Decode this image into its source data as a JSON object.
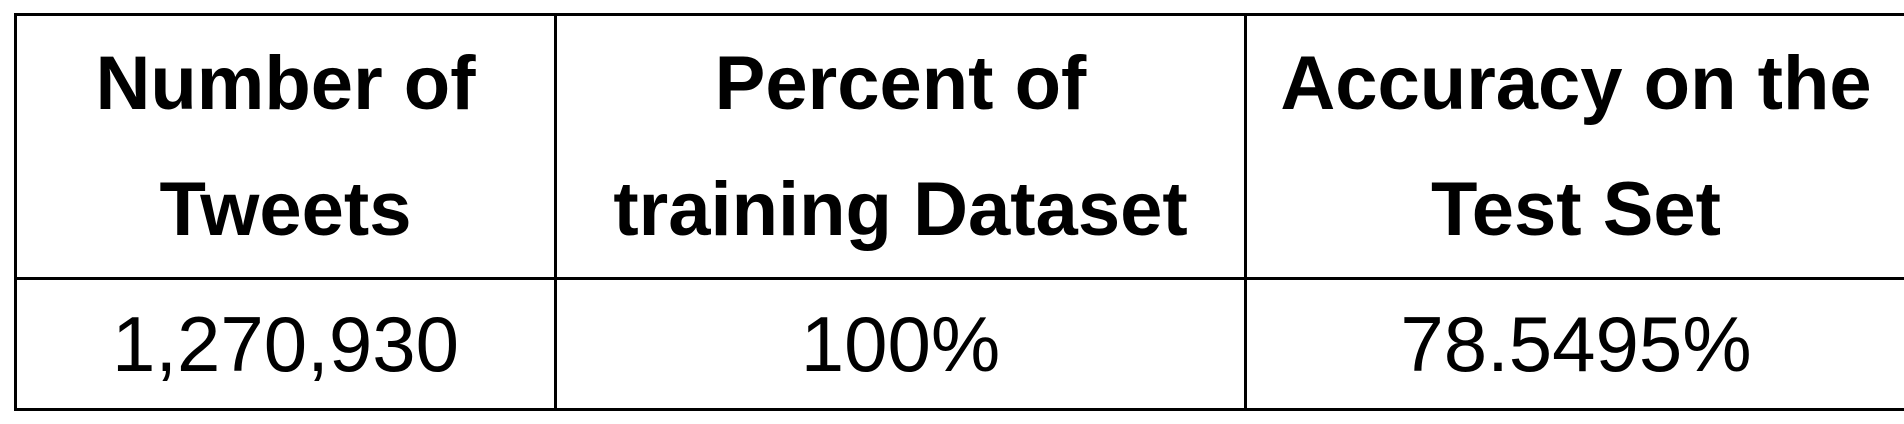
{
  "table": {
    "headers": [
      {
        "line1": "Number of",
        "line2": "Tweets"
      },
      {
        "line1": "Percent of",
        "line2": "training Dataset"
      },
      {
        "line1": "Accuracy on the",
        "line2": "Test Set"
      }
    ],
    "rows": [
      [
        "1,270,930",
        "100%",
        "78.5495%"
      ]
    ]
  }
}
